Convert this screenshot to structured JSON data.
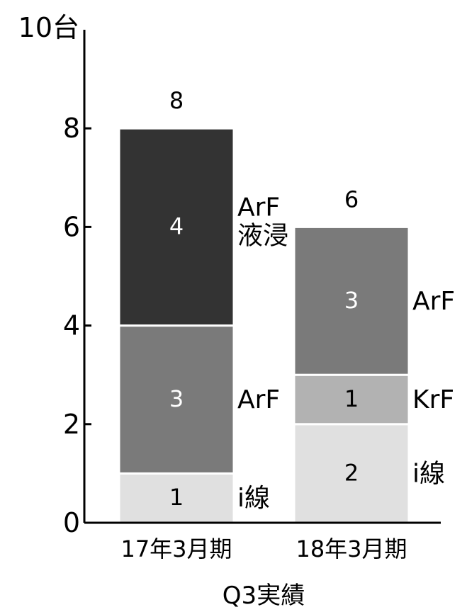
{
  "chart_data": {
    "type": "bar",
    "stacked": true,
    "categories": [
      "17年3月期",
      "18年3月期"
    ],
    "y_unit_label": "10台",
    "y_ticks": [
      "0",
      "2",
      "4",
      "6",
      "8"
    ],
    "ylim": [
      0,
      10
    ],
    "xlabel": "Q3実績",
    "grid": false,
    "stacks": [
      {
        "total_label": "8",
        "segments": [
          {
            "value": 1,
            "value_label": "1",
            "name": "i線",
            "color": "#e0e0e0",
            "text_color": "#000000"
          },
          {
            "value": 3,
            "value_label": "3",
            "name": "ArF",
            "color": "#7a7a7a",
            "text_color": "#ffffff"
          },
          {
            "value": 4,
            "value_label": "4",
            "name": "ArF\n液浸",
            "color": "#333333",
            "text_color": "#ffffff"
          }
        ]
      },
      {
        "total_label": "6",
        "segments": [
          {
            "value": 2,
            "value_label": "2",
            "name": "i線",
            "color": "#e0e0e0",
            "text_color": "#000000"
          },
          {
            "value": 1,
            "value_label": "1",
            "name": "KrF",
            "color": "#b2b2b2",
            "text_color": "#000000"
          },
          {
            "value": 3,
            "value_label": "3",
            "name": "ArF",
            "color": "#7a7a7a",
            "text_color": "#ffffff"
          }
        ]
      }
    ]
  }
}
